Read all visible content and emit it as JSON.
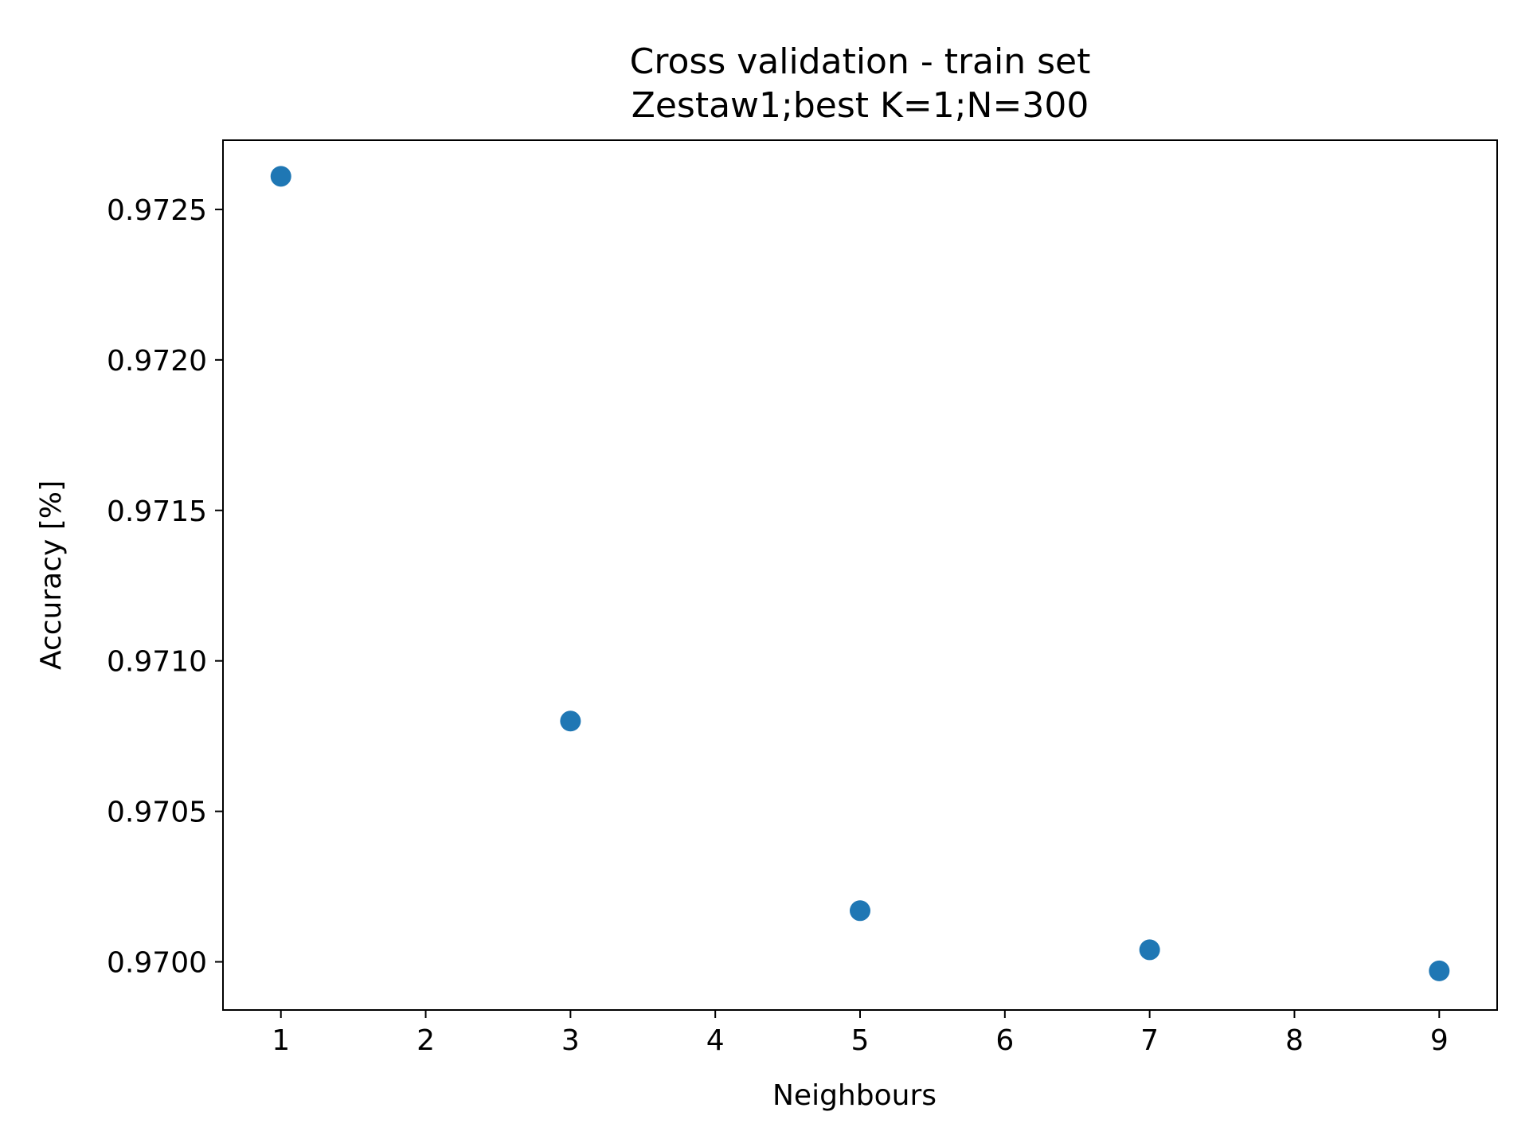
{
  "chart_data": {
    "type": "scatter",
    "title": "Cross validation - train set",
    "subtitle": "Zestaw1;best K=1;N=300",
    "xlabel": "Neighbours",
    "ylabel": "Accuracy [%]",
    "x": [
      1,
      3,
      5,
      7,
      9
    ],
    "y": [
      0.97261,
      0.9708,
      0.97017,
      0.97004,
      0.96997
    ],
    "xlim": [
      0.6,
      9.4
    ],
    "ylim": [
      0.96984,
      0.97273
    ],
    "xticks": [
      1,
      2,
      3,
      4,
      5,
      6,
      7,
      8,
      9
    ],
    "xtick_labels": [
      "1",
      "2",
      "3",
      "4",
      "5",
      "6",
      "7",
      "8",
      "9"
    ],
    "yticks": [
      0.97,
      0.9705,
      0.971,
      0.9715,
      0.972,
      0.9725
    ],
    "ytick_labels": [
      "0.9700",
      "0.9705",
      "0.9710",
      "0.9715",
      "0.9720",
      "0.9725"
    ],
    "grid": false,
    "legend": "none",
    "colors": {
      "marker": "#1f77b4",
      "axes": "#000000"
    }
  }
}
